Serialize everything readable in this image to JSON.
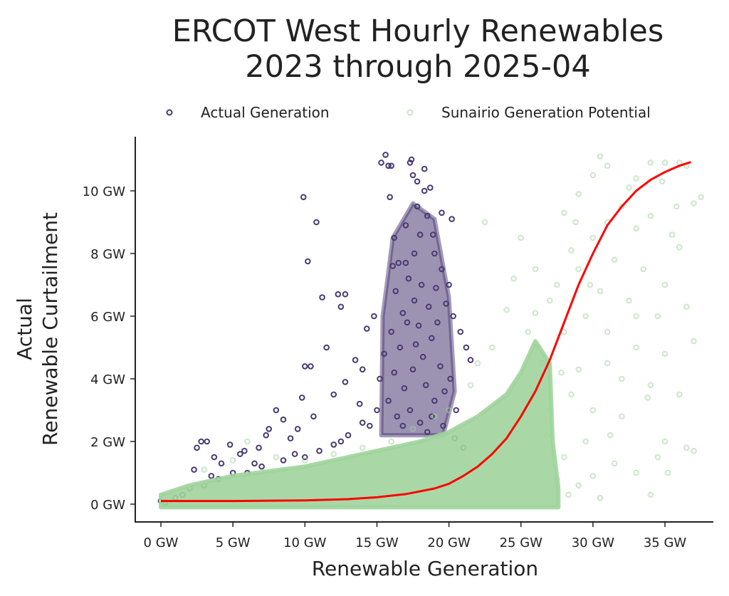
{
  "chart_data": {
    "type": "scatter",
    "title_lines": [
      "ERCOT West Hourly Renewables",
      "2023 through 2025-04"
    ],
    "xlabel": "Renewable Generation",
    "ylabel_lines": [
      "Actual",
      "Renewable Curtailment"
    ],
    "xlim": [
      -1.8,
      38.5
    ],
    "ylim": [
      -0.55,
      11.8
    ],
    "x_ticks": [
      0,
      5,
      10,
      15,
      20,
      25,
      30,
      35
    ],
    "x_tick_labels": [
      "0 GW",
      "5 GW",
      "10 GW",
      "15 GW",
      "20 GW",
      "25 GW",
      "30 GW",
      "35 GW"
    ],
    "y_ticks": [
      0,
      2,
      4,
      6,
      8,
      10
    ],
    "y_tick_labels": [
      "0 GW",
      "2 GW",
      "4 GW",
      "6 GW",
      "8 GW",
      "10 GW"
    ],
    "grid": false,
    "legend_placement": "top",
    "colors": {
      "actual": "#4b3b73",
      "potential": "#a0d49c",
      "fit": "#ff0000"
    },
    "series": [
      {
        "name": "Actual Generation",
        "color": "#4b3b73",
        "dense_region": [
          [
            15.3,
            2.2
          ],
          [
            15.4,
            6
          ],
          [
            16.1,
            8.5
          ],
          [
            17.5,
            9.6
          ],
          [
            19,
            9.1
          ],
          [
            20,
            6.6
          ],
          [
            20.4,
            3.6
          ],
          [
            19.6,
            2.2
          ]
        ],
        "points": [
          [
            9.9,
            9.8
          ],
          [
            10.8,
            9.0
          ],
          [
            10.2,
            7.75
          ],
          [
            11.2,
            6.6
          ],
          [
            12.3,
            6.7
          ],
          [
            12.8,
            6.7
          ],
          [
            12.5,
            6.3
          ],
          [
            10,
            4.4
          ],
          [
            10.4,
            4.4
          ],
          [
            11.5,
            5.0
          ],
          [
            9.8,
            3.4
          ],
          [
            8.5,
            2.7
          ],
          [
            8,
            3.0
          ],
          [
            7.5,
            2.4
          ],
          [
            2.5,
            1.8
          ],
          [
            2.8,
            2.0
          ],
          [
            3.2,
            2.0
          ],
          [
            4.8,
            1.9
          ],
          [
            5.5,
            1.6
          ],
          [
            6.8,
            1.8
          ],
          [
            7.3,
            2.2
          ],
          [
            9,
            2.1
          ],
          [
            9.5,
            2.4
          ],
          [
            10.6,
            2.8
          ],
          [
            12,
            3.5
          ],
          [
            12.8,
            3.9
          ],
          [
            13.5,
            4.6
          ],
          [
            14,
            4.3
          ],
          [
            14.3,
            5.6
          ],
          [
            14.8,
            6.0
          ],
          [
            13.8,
            3.2
          ],
          [
            15.3,
            10.9
          ],
          [
            15.6,
            11.15
          ],
          [
            15.8,
            10.8
          ],
          [
            16,
            10.8
          ],
          [
            15.9,
            9.8
          ],
          [
            17.3,
            10.9
          ],
          [
            17.4,
            11
          ],
          [
            17.5,
            10.5
          ],
          [
            18.3,
            10.7
          ],
          [
            18.7,
            10.1
          ],
          [
            19.5,
            9.3
          ],
          [
            20.2,
            9.1
          ],
          [
            16.2,
            8.5
          ],
          [
            16.5,
            7.7
          ],
          [
            17,
            8.9
          ],
          [
            17.8,
            9.5
          ],
          [
            18,
            8.6
          ],
          [
            18.5,
            9.2
          ],
          [
            19,
            8.0
          ],
          [
            19.5,
            7.5
          ],
          [
            20,
            7.0
          ],
          [
            20.3,
            6.0
          ],
          [
            20.8,
            5.5
          ],
          [
            21.2,
            5.0
          ],
          [
            21.5,
            4.6
          ],
          [
            16.3,
            6.8
          ],
          [
            16.8,
            6.1
          ],
          [
            17.2,
            7.2
          ],
          [
            17.6,
            6.5
          ],
          [
            18.1,
            7.0
          ],
          [
            18.6,
            6.3
          ],
          [
            19.2,
            5.8
          ],
          [
            19.8,
            6.4
          ],
          [
            16,
            5.5
          ],
          [
            16.6,
            5.0
          ],
          [
            17.1,
            5.8
          ],
          [
            17.7,
            5.1
          ],
          [
            18.2,
            4.7
          ],
          [
            18.8,
            5.3
          ],
          [
            19.4,
            4.4
          ],
          [
            20.1,
            4.0
          ],
          [
            15.5,
            4.8
          ],
          [
            15.2,
            4.0
          ],
          [
            16.2,
            4.2
          ],
          [
            16.9,
            3.7
          ],
          [
            17.5,
            4.3
          ],
          [
            18.4,
            3.8
          ],
          [
            19,
            3.3
          ],
          [
            19.7,
            3.6
          ],
          [
            20.5,
            3.0
          ],
          [
            15,
            3.0
          ],
          [
            15.8,
            3.3
          ],
          [
            16.4,
            2.8
          ],
          [
            17.3,
            3.0
          ],
          [
            18,
            2.6
          ],
          [
            18.8,
            2.8
          ],
          [
            19.6,
            2.5
          ],
          [
            14.5,
            2.5
          ],
          [
            13,
            2.2
          ],
          [
            12,
            1.9
          ],
          [
            11,
            1.7
          ],
          [
            10,
            1.5
          ],
          [
            8.5,
            1.4
          ],
          [
            7,
            1.2
          ],
          [
            6,
            1.0
          ],
          [
            5,
            1.0
          ],
          [
            4,
            0.8
          ],
          [
            3,
            0.6
          ],
          [
            2,
            0.5
          ],
          [
            1,
            0.2
          ],
          [
            0,
            0.1
          ],
          [
            0.3,
            0.05
          ],
          [
            1.5,
            0.3
          ],
          [
            3.5,
            0.9
          ],
          [
            6.5,
            1.3
          ],
          [
            9.3,
            1.6
          ],
          [
            12.5,
            2.0
          ],
          [
            14,
            2.6
          ],
          [
            16.8,
            2.5
          ],
          [
            18.5,
            2.3
          ],
          [
            20.4,
            2.1
          ],
          [
            21,
            1.8
          ],
          [
            5.8,
            1.7
          ],
          [
            4.2,
            1.3
          ],
          [
            3.7,
            1.5
          ],
          [
            2.3,
            1.1
          ],
          [
            17,
            7.7
          ],
          [
            18.9,
            8.6
          ],
          [
            16.1,
            7.6
          ],
          [
            17.9,
            5.7
          ],
          [
            19.1,
            6.9
          ],
          [
            17.6,
            8.0
          ],
          [
            18.3,
            10.0
          ],
          [
            17.8,
            10.3
          ]
        ]
      },
      {
        "name": "Sunairio Generation Potential",
        "color": "#a0d49c",
        "dense_region": [
          [
            0,
            -0.1
          ],
          [
            0,
            0.3
          ],
          [
            2,
            0.6
          ],
          [
            5,
            0.9
          ],
          [
            10,
            1.2
          ],
          [
            15,
            1.7
          ],
          [
            18,
            2.0
          ],
          [
            20,
            2.3
          ],
          [
            22,
            2.8
          ],
          [
            24,
            3.5
          ],
          [
            25,
            4.2
          ],
          [
            26,
            5.2
          ],
          [
            27,
            4.5
          ],
          [
            27.2,
            2
          ],
          [
            27.6,
            0.5
          ],
          [
            27.6,
            -0.1
          ]
        ],
        "points": [
          [
            26,
            6.1
          ],
          [
            27,
            6.5
          ],
          [
            28,
            9.3
          ],
          [
            29,
            9.9
          ],
          [
            30.5,
            11.1
          ],
          [
            31,
            10.8
          ],
          [
            30,
            10.5
          ],
          [
            33,
            10.4
          ],
          [
            34,
            10.9
          ],
          [
            35,
            10.9
          ],
          [
            36,
            10.9
          ],
          [
            36.5,
            10.8
          ],
          [
            37.5,
            9.8
          ],
          [
            37,
            9.6
          ],
          [
            35.5,
            8.6
          ],
          [
            36,
            8.2
          ],
          [
            34,
            9.2
          ],
          [
            33,
            8.8
          ],
          [
            32,
            9.5
          ],
          [
            31,
            9.0
          ],
          [
            30,
            8.5
          ],
          [
            29,
            7.5
          ],
          [
            28.5,
            8.1
          ],
          [
            27.5,
            7.0
          ],
          [
            24.5,
            7.2
          ],
          [
            22.5,
            9.0
          ],
          [
            25,
            8.5
          ],
          [
            26,
            7.5
          ],
          [
            31.5,
            7.8
          ],
          [
            33.5,
            7.5
          ],
          [
            35,
            7.0
          ],
          [
            36.5,
            6.3
          ],
          [
            34.5,
            6.0
          ],
          [
            32.5,
            6.5
          ],
          [
            30.5,
            6.8
          ],
          [
            29.5,
            6.0
          ],
          [
            28,
            5.5
          ],
          [
            33,
            5.0
          ],
          [
            35,
            4.8
          ],
          [
            37,
            5.2
          ],
          [
            31,
            4.5
          ],
          [
            29,
            4.3
          ],
          [
            34,
            3.8
          ],
          [
            36,
            3.5
          ],
          [
            30,
            3.0
          ],
          [
            32,
            2.8
          ],
          [
            35,
            2.0
          ],
          [
            37,
            1.7
          ],
          [
            36.5,
            1.8
          ],
          [
            34.5,
            1.5
          ],
          [
            33,
            1.0
          ],
          [
            31.5,
            1.3
          ],
          [
            30,
            0.9
          ],
          [
            29,
            0.6
          ],
          [
            30.5,
            0.2
          ],
          [
            34,
            0.3
          ],
          [
            35.2,
            1.0
          ],
          [
            33.8,
            3.4
          ],
          [
            29.5,
            2.0
          ],
          [
            28,
            1.5
          ],
          [
            27.5,
            0.8
          ],
          [
            32,
            4.0
          ],
          [
            33,
            6.0
          ],
          [
            31,
            5.5
          ],
          [
            28.5,
            3.5
          ],
          [
            27,
            3.0
          ],
          [
            26.5,
            4.5
          ],
          [
            25.5,
            5.5
          ],
          [
            24,
            6.2
          ],
          [
            23,
            5.0
          ],
          [
            22,
            4.5
          ],
          [
            21.5,
            3.8
          ],
          [
            20,
            3.0
          ],
          [
            19,
            2.8
          ],
          [
            17.5,
            2.4
          ],
          [
            16,
            2.0
          ],
          [
            14,
            1.8
          ],
          [
            12,
            1.6
          ],
          [
            10,
            1.4
          ],
          [
            8,
            1.5
          ],
          [
            6,
            2.0
          ],
          [
            5,
            1.4
          ],
          [
            3,
            1.1
          ],
          [
            28.8,
            9.0
          ],
          [
            32.5,
            10.1
          ],
          [
            34.8,
            10.3
          ],
          [
            35.8,
            9.5
          ],
          [
            29.8,
            7.0
          ],
          [
            27.8,
            4.2
          ],
          [
            26.8,
            2.2
          ],
          [
            28.3,
            0.3
          ],
          [
            31.2,
            2.2
          ]
        ]
      }
    ],
    "fit_curve": {
      "color": "#ff0000",
      "points": [
        [
          0,
          0.1
        ],
        [
          5,
          0.1
        ],
        [
          10,
          0.12
        ],
        [
          13,
          0.16
        ],
        [
          15,
          0.22
        ],
        [
          17,
          0.32
        ],
        [
          19,
          0.5
        ],
        [
          20,
          0.65
        ],
        [
          21,
          0.9
        ],
        [
          22,
          1.2
        ],
        [
          23,
          1.6
        ],
        [
          24,
          2.1
        ],
        [
          25,
          2.8
        ],
        [
          26,
          3.6
        ],
        [
          27,
          4.6
        ],
        [
          28,
          5.8
        ],
        [
          29,
          7.0
        ],
        [
          30,
          8.0
        ],
        [
          31,
          8.9
        ],
        [
          32,
          9.5
        ],
        [
          33,
          10.0
        ],
        [
          34,
          10.35
        ],
        [
          35,
          10.6
        ],
        [
          36,
          10.8
        ],
        [
          36.8,
          10.92
        ]
      ]
    }
  }
}
